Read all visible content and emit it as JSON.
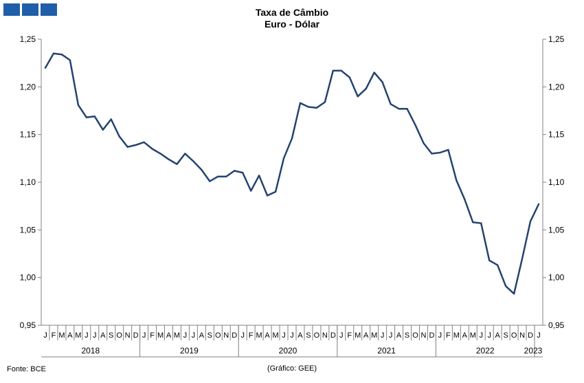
{
  "header": {
    "logo_icon": "gee-logo-icon",
    "title_line1": "Taxa de Câmbio",
    "title_line2": "Euro - Dólar"
  },
  "footer": {
    "source": "Fonte: BCE",
    "credit": "(Gráfico: GEE)"
  },
  "colors": {
    "line": "#24436e",
    "logo": "#1f5ea8",
    "axis": "#808080"
  },
  "chart_data": {
    "type": "line",
    "title": "Taxa de Câmbio Euro - Dólar",
    "xlabel": "",
    "ylabel": "",
    "ylim": [
      0.95,
      1.25
    ],
    "y_ticks": [
      "1,25",
      "1,20",
      "1,15",
      "1,10",
      "1,05",
      "1,00",
      "0,95"
    ],
    "grid": false,
    "legend": "none",
    "month_labels": [
      "J",
      "F",
      "M",
      "A",
      "M",
      "J",
      "J",
      "A",
      "S",
      "O",
      "N",
      "D"
    ],
    "years": [
      "2018",
      "2019",
      "2020",
      "2021",
      "2022",
      "2023"
    ],
    "x": [
      "2018-01",
      "2018-02",
      "2018-03",
      "2018-04",
      "2018-05",
      "2018-06",
      "2018-07",
      "2018-08",
      "2018-09",
      "2018-10",
      "2018-11",
      "2018-12",
      "2019-01",
      "2019-02",
      "2019-03",
      "2019-04",
      "2019-05",
      "2019-06",
      "2019-07",
      "2019-08",
      "2019-09",
      "2019-10",
      "2019-11",
      "2019-12",
      "2020-01",
      "2020-02",
      "2020-03",
      "2020-04",
      "2020-05",
      "2020-06",
      "2020-07",
      "2020-08",
      "2020-09",
      "2020-10",
      "2020-11",
      "2020-12",
      "2021-01",
      "2021-02",
      "2021-03",
      "2021-04",
      "2021-05",
      "2021-06",
      "2021-07",
      "2021-08",
      "2021-09",
      "2021-10",
      "2021-11",
      "2021-12",
      "2022-01",
      "2022-02",
      "2022-03",
      "2022-04",
      "2022-05",
      "2022-06",
      "2022-07",
      "2022-08",
      "2022-09",
      "2022-10",
      "2022-11",
      "2022-12",
      "2023-01"
    ],
    "series": [
      {
        "values": [
          1.22,
          1.235,
          1.234,
          1.228,
          1.181,
          1.168,
          1.169,
          1.155,
          1.166,
          1.148,
          1.137,
          1.139,
          1.142,
          1.135,
          1.13,
          1.124,
          1.119,
          1.13,
          1.122,
          1.113,
          1.101,
          1.106,
          1.106,
          1.112,
          1.11,
          1.091,
          1.107,
          1.086,
          1.09,
          1.125,
          1.146,
          1.183,
          1.179,
          1.178,
          1.184,
          1.217,
          1.217,
          1.21,
          1.19,
          1.198,
          1.215,
          1.205,
          1.182,
          1.177,
          1.177,
          1.16,
          1.141,
          1.13,
          1.131,
          1.134,
          1.102,
          1.082,
          1.058,
          1.057,
          1.018,
          1.013,
          0.991,
          0.983,
          1.02,
          1.059,
          1.077
        ]
      }
    ]
  }
}
